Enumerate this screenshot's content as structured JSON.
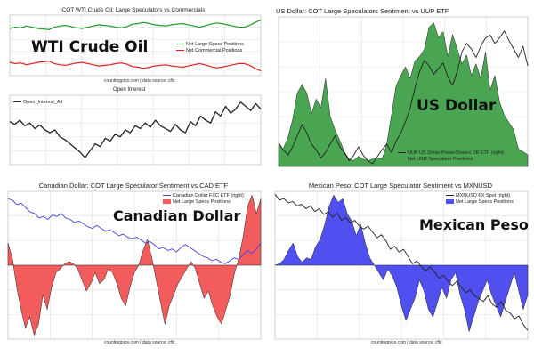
{
  "panels": {
    "oil": {
      "title": "COT WTI Crude Oil: Large Speculators vs Commercials",
      "overlay": "WTI Crude Oil",
      "source": "countingpips.com | data source: cftc",
      "subtitle": "Open Interest",
      "legend_top": [
        "Net Large Specs Positions",
        "Net Commercial Positions"
      ],
      "legend_bottom": [
        "Open_Interest_All"
      ]
    },
    "usd": {
      "title": "US Dollar: COT Large Speculators Sentiment vs UUP ETF",
      "overlay": "US Dollar",
      "legend": [
        "UUP US Dollar PowerShares DB ETF (right)",
        "Net USD Speculator Positions"
      ]
    },
    "cad": {
      "title": "Canadian Dollar: COT Large Speculator Sentiment vs CAD ETF",
      "overlay": "Canadian Dollar",
      "source": "countingpips.com | data source: cftc",
      "legend": [
        "Canadian Dollar FXC ETF (right)",
        "Net Large Specs Positions"
      ]
    },
    "mxn": {
      "title": "Mexican Peso: COT Large Speculator Sentiment vs MXNUSD",
      "overlay": "Mexican Peso",
      "source": "countingpips.com | data source: cftc",
      "legend": [
        "MXNUSD FX Spot (right)",
        "Net Large Specs Positions"
      ]
    }
  },
  "colors": {
    "specs_green": "#1e9b2e",
    "commercial_red": "#e02020",
    "usd_fill": "#4aa552",
    "cad_fill": "#f25c5c",
    "cad_line": "#4444dd",
    "mxn_fill": "#5050f0",
    "price_line": "#222222"
  },
  "chart_data": [
    {
      "type": "line",
      "title": "COT WTI Crude Oil: Large Speculators vs Commercials",
      "series": [
        {
          "name": "Net Large Specs Positions",
          "values": [
            0.78,
            0.8,
            0.79,
            0.82,
            0.8,
            0.78,
            0.77,
            0.76,
            0.8,
            0.82,
            0.83,
            0.81,
            0.79,
            0.78,
            0.8,
            0.82,
            0.84,
            0.83,
            0.82,
            0.8,
            0.79,
            0.81,
            0.85,
            0.86,
            0.88,
            0.86,
            0.84,
            0.83,
            0.82,
            0.84,
            0.85,
            0.86,
            0.84,
            0.82,
            0.8,
            0.82,
            0.85,
            0.87,
            0.86,
            0.84,
            0.82,
            0.8,
            0.8,
            0.83,
            0.88,
            0.92
          ]
        },
        {
          "name": "Net Commercial Positions",
          "values": [
            0.22,
            0.2,
            0.21,
            0.18,
            0.2,
            0.22,
            0.23,
            0.24,
            0.2,
            0.18,
            0.17,
            0.19,
            0.21,
            0.22,
            0.2,
            0.18,
            0.16,
            0.17,
            0.18,
            0.2,
            0.21,
            0.19,
            0.15,
            0.14,
            0.12,
            0.14,
            0.16,
            0.17,
            0.18,
            0.16,
            0.15,
            0.14,
            0.16,
            0.18,
            0.2,
            0.18,
            0.15,
            0.13,
            0.14,
            0.16,
            0.18,
            0.2,
            0.2,
            0.17,
            0.12,
            0.08
          ]
        }
      ]
    },
    {
      "type": "line",
      "title": "Open Interest",
      "series": [
        {
          "name": "Open_Interest_All",
          "values": [
            0.62,
            0.58,
            0.64,
            0.56,
            0.6,
            0.52,
            0.57,
            0.5,
            0.46,
            0.5,
            0.4,
            0.36,
            0.3,
            0.24,
            0.18,
            0.1,
            0.2,
            0.3,
            0.26,
            0.38,
            0.34,
            0.44,
            0.4,
            0.5,
            0.46,
            0.56,
            0.52,
            0.6,
            0.54,
            0.64,
            0.56,
            0.52,
            0.48,
            0.58,
            0.5,
            0.46,
            0.62,
            0.56,
            0.7,
            0.64,
            0.6,
            0.76,
            0.7,
            0.84,
            0.74,
            0.8,
            0.9,
            0.84,
            0.78,
            0.88,
            0.8
          ]
        }
      ]
    },
    {
      "type": "area",
      "title": "US Dollar: COT Large Speculators Sentiment vs UUP ETF",
      "series": [
        {
          "name": "Net USD Speculator Positions",
          "values": [
            0.15,
            0.12,
            0.2,
            0.32,
            0.5,
            0.56,
            0.5,
            0.36,
            0.46,
            0.4,
            0.6,
            0.34,
            0.25,
            0.18,
            0.1,
            0.05,
            0.04,
            0.07,
            0.05,
            0.04,
            0.05,
            0.06,
            0.05,
            0.15,
            0.35,
            0.55,
            0.62,
            0.68,
            0.6,
            0.72,
            0.75,
            0.8,
            0.95,
            0.98,
            0.88,
            0.92,
            0.75,
            0.9,
            0.8,
            0.7,
            0.76,
            0.62,
            0.7,
            0.6,
            0.78,
            0.52,
            0.62,
            0.44,
            0.35,
            0.3,
            0.25,
            0.12,
            0.1,
            0.08
          ]
        },
        {
          "name": "UUP US Dollar PowerShares DB ETF (right)",
          "values": [
            0.15,
            0.1,
            0.06,
            0.12,
            0.2,
            0.28,
            0.22,
            0.14,
            0.1,
            0.04,
            0.08,
            0.14,
            0.2,
            0.12,
            0.08,
            0.02,
            0.06,
            0.12,
            0.06,
            0.02,
            0.0,
            0.05,
            0.1,
            0.14,
            0.08,
            0.16,
            0.22,
            0.3,
            0.4,
            0.54,
            0.66,
            0.74,
            0.7,
            0.64,
            0.68,
            0.72,
            0.62,
            0.56,
            0.66,
            0.8,
            0.86,
            0.82,
            0.76,
            0.84,
            0.9,
            0.92,
            0.86,
            0.9,
            0.95,
            0.88,
            0.82,
            0.76,
            0.84,
            0.7
          ]
        }
      ]
    },
    {
      "type": "area",
      "title": "Canadian Dollar: COT Large Speculator Sentiment vs CAD ETF",
      "series": [
        {
          "name": "Net Large Specs Positions",
          "values": [
            0.3,
            0.1,
            -0.3,
            -0.6,
            -0.85,
            -0.7,
            -0.95,
            -0.8,
            -0.4,
            -0.6,
            -0.3,
            -0.1,
            -0.05,
            0.02,
            0.05,
            0.02,
            -0.05,
            -0.2,
            -0.35,
            -0.25,
            -0.1,
            -0.25,
            -0.2,
            -0.05,
            -0.1,
            -0.25,
            -0.45,
            -0.55,
            -0.3,
            -0.1,
            0.0,
            0.2,
            0.35,
            0.1,
            -0.2,
            -0.5,
            -0.8,
            -0.55,
            -0.4,
            -0.25,
            -0.15,
            -0.05,
            0.05,
            -0.05,
            -0.25,
            -0.45,
            -0.35,
            -0.55,
            -0.7,
            -0.8,
            -0.6,
            -0.4,
            -0.1,
            0.1,
            0.4,
            0.8,
            0.95,
            0.7,
            0.9
          ]
        },
        {
          "name": "Canadian Dollar FXC ETF (right)",
          "values": [
            0.9,
            0.88,
            0.82,
            0.84,
            0.78,
            0.72,
            0.7,
            0.64,
            0.66,
            0.62,
            0.68,
            0.66,
            0.7,
            0.64,
            0.62,
            0.58,
            0.6,
            0.56,
            0.52,
            0.5,
            0.54,
            0.5,
            0.46,
            0.48,
            0.44,
            0.4,
            0.42,
            0.38,
            0.36,
            0.38,
            0.34,
            0.3,
            0.32,
            0.28,
            0.22,
            0.24,
            0.2,
            0.22,
            0.18,
            0.24,
            0.28,
            0.24,
            0.2,
            0.16,
            0.12,
            0.1,
            0.06,
            0.08,
            0.04,
            0.02,
            0.06,
            0.1,
            0.08,
            0.14,
            0.2,
            0.16,
            0.22,
            0.3
          ]
        }
      ]
    },
    {
      "type": "area",
      "title": "Mexican Peso: COT Large Speculator Sentiment vs MXNUSD",
      "series": [
        {
          "name": "Net Large Specs Positions",
          "values": [
            0.0,
            0.02,
            0.08,
            0.2,
            0.3,
            0.12,
            0.04,
            0.1,
            0.08,
            0.25,
            0.35,
            0.55,
            0.8,
            0.95,
            0.85,
            0.9,
            0.7,
            0.6,
            0.4,
            0.55,
            0.3,
            0.1,
            0.0,
            -0.1,
            -0.2,
            -0.05,
            -0.15,
            -0.3,
            -0.55,
            -0.75,
            -0.6,
            -0.45,
            -0.2,
            -0.35,
            -0.6,
            -0.7,
            -0.5,
            -0.3,
            -0.45,
            -0.2,
            -0.1,
            -0.4,
            -0.6,
            -0.9,
            -0.7,
            -0.5,
            -0.35,
            -0.2,
            -0.4,
            -0.55,
            -0.7,
            -0.5,
            -0.3,
            -0.1,
            -0.35,
            -0.6,
            -0.4
          ]
        },
        {
          "name": "MXNUSD FX Spot (right)",
          "values": [
            0.98,
            0.94,
            0.95,
            0.92,
            0.93,
            0.9,
            0.91,
            0.88,
            0.9,
            0.86,
            0.88,
            0.84,
            0.86,
            0.82,
            0.85,
            0.8,
            0.82,
            0.78,
            0.8,
            0.76,
            0.74,
            0.76,
            0.72,
            0.68,
            0.7,
            0.66,
            0.6,
            0.62,
            0.58,
            0.6,
            0.55,
            0.5,
            0.52,
            0.48,
            0.45,
            0.48,
            0.44,
            0.4,
            0.42,
            0.38,
            0.35,
            0.38,
            0.34,
            0.3,
            0.32,
            0.28,
            0.26,
            0.24,
            0.28,
            0.22,
            0.2,
            0.24,
            0.18,
            0.16,
            0.12,
            0.14,
            0.08,
            0.04
          ]
        }
      ]
    }
  ]
}
